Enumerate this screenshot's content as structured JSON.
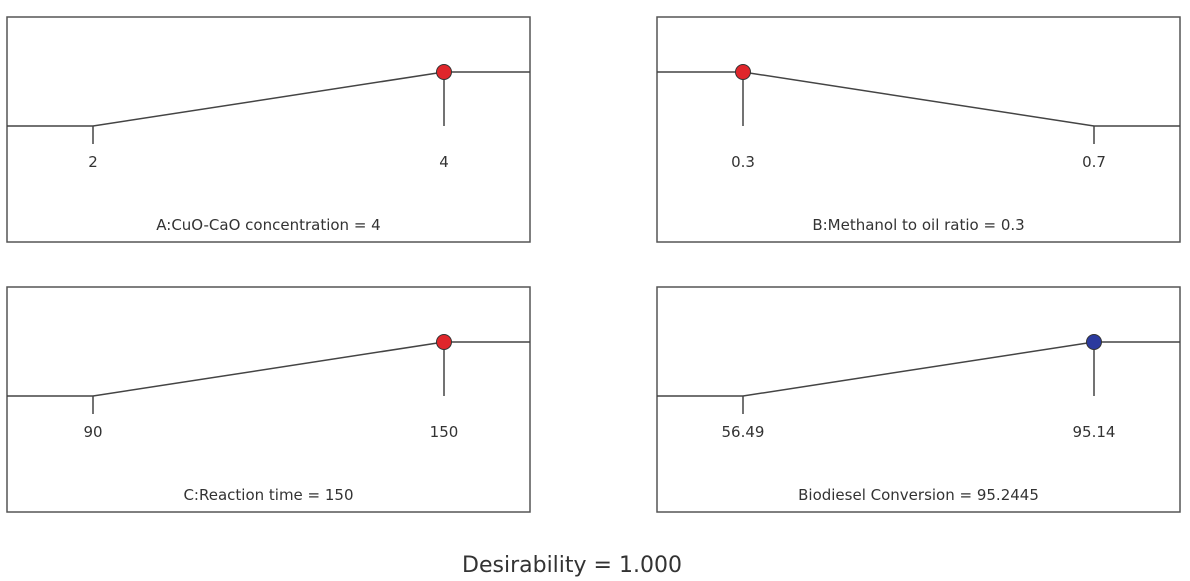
{
  "chart_data": [
    {
      "type": "line",
      "title": "A:CuO-CaO concentration = 4",
      "tick_labels": [
        "2",
        "4"
      ],
      "low": 2,
      "high": 4,
      "value": 4,
      "goal": "maximize",
      "marker_color": "#e0262b"
    },
    {
      "type": "line",
      "title": "B:Methanol to oil ratio = 0.3",
      "tick_labels": [
        "0.3",
        "0.7"
      ],
      "low": 0.3,
      "high": 0.7,
      "value": 0.3,
      "goal": "minimize",
      "marker_color": "#e0262b"
    },
    {
      "type": "line",
      "title": "C:Reaction time = 150",
      "tick_labels": [
        "90",
        "150"
      ],
      "low": 90,
      "high": 150,
      "value": 150,
      "goal": "maximize",
      "marker_color": "#e0262b"
    },
    {
      "type": "line",
      "title": "Biodiesel Conversion = 95.2445",
      "tick_labels": [
        "56.49",
        "95.14"
      ],
      "low": 56.49,
      "high": 95.14,
      "value": 95.2445,
      "goal": "maximize",
      "marker_color": "#2b3a9e"
    }
  ],
  "desirability": "Desirability = 1.000"
}
